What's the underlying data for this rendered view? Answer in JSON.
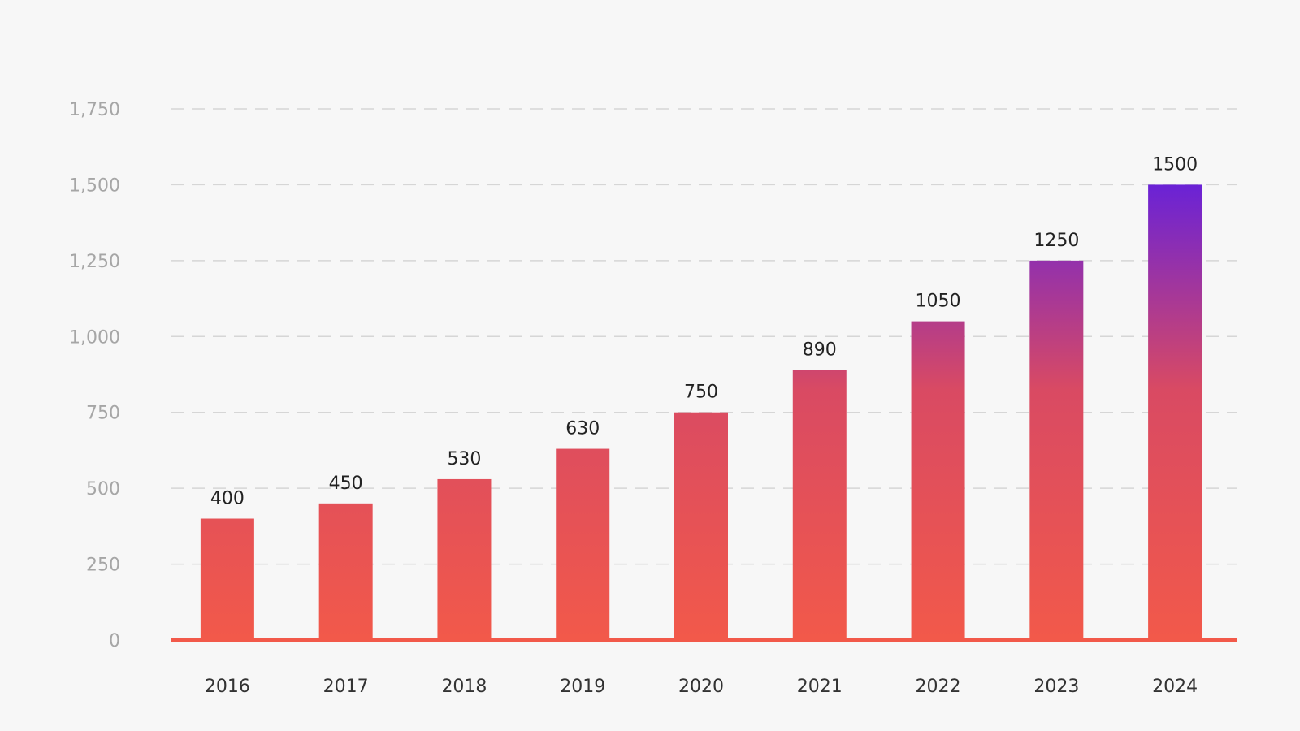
{
  "colors": {
    "background": "#f7f7f7",
    "bar_bottom": "#f2594a",
    "bar_mid": "#d94a63",
    "bar_top": "#6a22d6",
    "baseline": "#f2594a",
    "grid": "#d6d6d6",
    "y_tick_text": "#a6a6a6",
    "x_tick_text": "#333333",
    "value_label_text": "#222222"
  },
  "chart_data": {
    "type": "bar",
    "title": "",
    "xlabel": "",
    "ylabel": "",
    "categories": [
      "2016",
      "2017",
      "2018",
      "2019",
      "2020",
      "2021",
      "2022",
      "2023",
      "2024"
    ],
    "values": [
      400,
      450,
      530,
      630,
      750,
      890,
      1050,
      1250,
      1500
    ],
    "data_labels": [
      "400",
      "450",
      "530",
      "630",
      "750",
      "890",
      "1050",
      "1250",
      "1500"
    ],
    "ylim": [
      0,
      1750
    ],
    "y_ticks": [
      0,
      250,
      500,
      750,
      1000,
      1250,
      1500,
      1750
    ],
    "y_tick_labels": [
      "0",
      "250",
      "500",
      "750",
      "1,000",
      "1,250",
      "1,500",
      "1,750"
    ],
    "grid": "horizontal dashed",
    "legend": "none",
    "fill": "vertical gradient from coral red at the bottom to purple at 1,500"
  }
}
